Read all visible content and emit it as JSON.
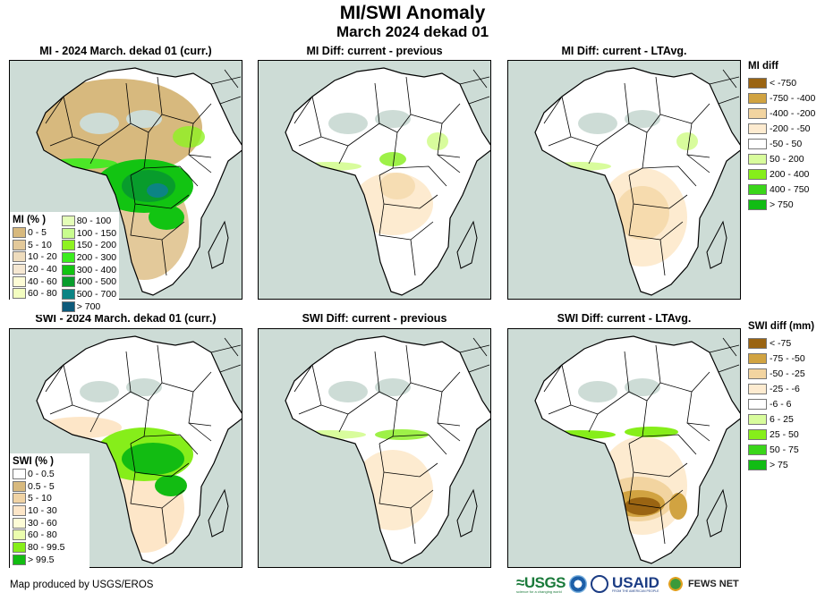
{
  "title": "MI/SWI Anomaly",
  "subtitle": "March 2024 dekad 01",
  "panels": [
    {
      "id": "mi-curr",
      "title": "MI - 2024 March. dekad 01 (curr.)",
      "variable": "MI",
      "kind": "current"
    },
    {
      "id": "mi-prev",
      "title": "MI Diff: current - previous",
      "variable": "MI",
      "kind": "diff-previous"
    },
    {
      "id": "mi-lta",
      "title": "MI Diff: current - LTAvg.",
      "variable": "MI",
      "kind": "diff-ltavg"
    },
    {
      "id": "swi-curr",
      "title": "SWI - 2024 March. dekad 01 (curr.)",
      "variable": "SWI",
      "kind": "current"
    },
    {
      "id": "swi-prev",
      "title": "SWI Diff: current - previous",
      "variable": "SWI",
      "kind": "diff-previous"
    },
    {
      "id": "swi-lta",
      "title": "SWI Diff: current - LTAvg.",
      "variable": "SWI",
      "kind": "diff-ltavg"
    }
  ],
  "legends": {
    "mi_pct": {
      "title": "MI (% )",
      "col1": [
        {
          "label": "0 - 5",
          "color": "#d7b97e"
        },
        {
          "label": "5 - 10",
          "color": "#e3c99a"
        },
        {
          "label": "10 - 20",
          "color": "#eedcbd"
        },
        {
          "label": "20 - 40",
          "color": "#f6e8d2"
        },
        {
          "label": "40 - 60",
          "color": "#fdfcd6"
        },
        {
          "label": "60 - 80",
          "color": "#f3fdc0"
        }
      ],
      "col2": [
        {
          "label": "80 - 100",
          "color": "#e4fdb8"
        },
        {
          "label": "100 - 150",
          "color": "#c8fc8e"
        },
        {
          "label": "150 - 200",
          "color": "#8ef222"
        },
        {
          "label": "200 - 300",
          "color": "#3cec1e"
        },
        {
          "label": "300 - 400",
          "color": "#12c412"
        },
        {
          "label": "400 - 500",
          "color": "#089c2c"
        },
        {
          "label": "500 - 700",
          "color": "#0c8484"
        },
        {
          "label": "> 700",
          "color": "#0d5a7a"
        }
      ]
    },
    "mi_diff": {
      "title": "MI diff",
      "items": [
        {
          "label": "< -750",
          "color": "#9a6412"
        },
        {
          "label": "-750 - -400",
          "color": "#d1a341"
        },
        {
          "label": "-400 - -200",
          "color": "#f2d4a0"
        },
        {
          "label": "-200 - -50",
          "color": "#fdebd0"
        },
        {
          "label": "-50 - 50",
          "color": "#ffffff"
        },
        {
          "label": "50 - 200",
          "color": "#d8fc9c"
        },
        {
          "label": "200 - 400",
          "color": "#86ee1a"
        },
        {
          "label": "400 - 750",
          "color": "#3ad61a"
        },
        {
          "label": "> 750",
          "color": "#11bc14"
        }
      ]
    },
    "swi_pct": {
      "title": "SWI (% )",
      "items": [
        {
          "label": "0 - 0.5",
          "color": "#ffffff"
        },
        {
          "label": "0.5 - 5",
          "color": "#d7b97e"
        },
        {
          "label": "5 - 10",
          "color": "#f0d3a4"
        },
        {
          "label": "10 - 30",
          "color": "#fde6c8"
        },
        {
          "label": "30 - 60",
          "color": "#fdfcd6"
        },
        {
          "label": "60 - 80",
          "color": "#ebfdae"
        },
        {
          "label": "80 - 99.5",
          "color": "#86ee1a"
        },
        {
          "label": "> 99.5",
          "color": "#12bc12"
        }
      ]
    },
    "swi_diff": {
      "title": "SWI diff (mm)",
      "items": [
        {
          "label": "< -75",
          "color": "#9a6412"
        },
        {
          "label": "-75 - -50",
          "color": "#d1a341"
        },
        {
          "label": "-50 - -25",
          "color": "#f2d4a0"
        },
        {
          "label": "-25 - -6",
          "color": "#fdebd0"
        },
        {
          "label": "-6 - 6",
          "color": "#ffffff"
        },
        {
          "label": "6 - 25",
          "color": "#d8fc9c"
        },
        {
          "label": "25 - 50",
          "color": "#86ee1a"
        },
        {
          "label": "50 - 75",
          "color": "#3ad61a"
        },
        {
          "label": "> 75",
          "color": "#11bc14"
        }
      ]
    }
  },
  "colors": {
    "ocean": "#cddcd6",
    "land_white": "#ffffff",
    "desert_gray": "#cddcd6",
    "border": "#000000"
  },
  "footer": "Map produced by USGS/EROS",
  "logos": [
    {
      "name": "USGS",
      "text": "USGS",
      "tagline": "science for a changing world"
    },
    {
      "name": "NOAA",
      "text": "NOAA"
    },
    {
      "name": "USAID-seal",
      "text": ""
    },
    {
      "name": "USAID",
      "text": "USAID",
      "tagline": "FROM THE AMERICAN PEOPLE"
    },
    {
      "name": "FEWS NET",
      "text": "FEWS NET"
    }
  ]
}
